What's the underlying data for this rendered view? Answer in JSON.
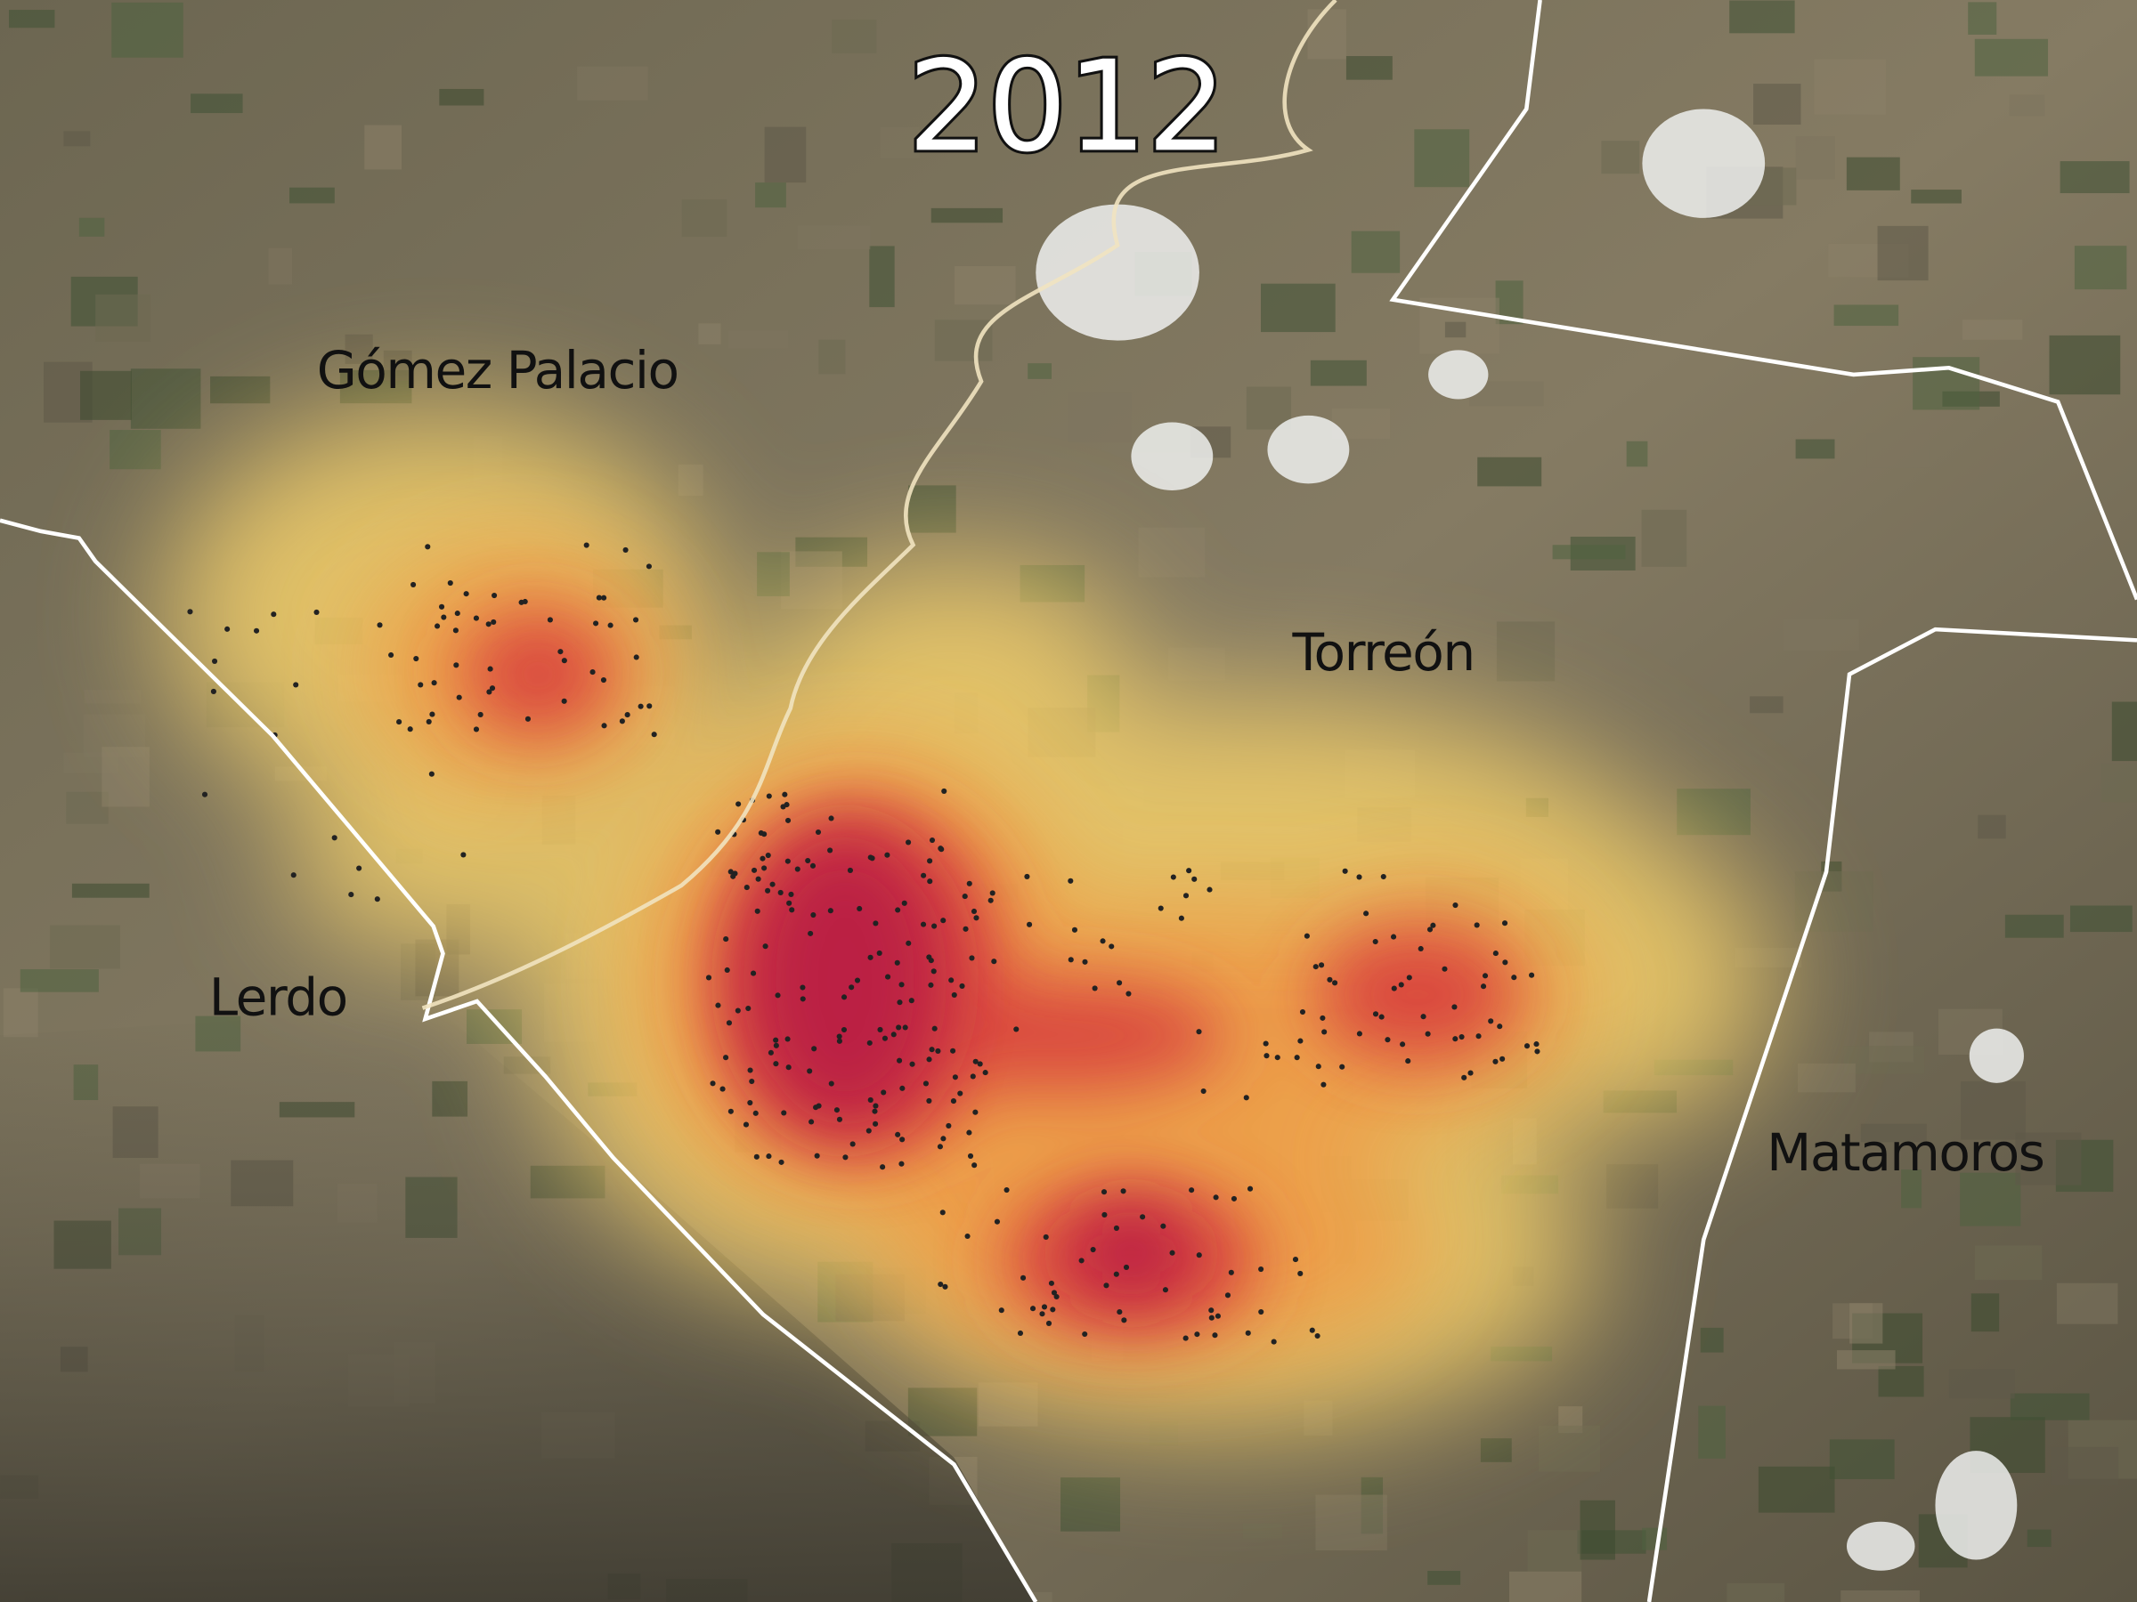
{
  "title": "2012",
  "places": [
    "Gómez Palacio",
    "Torreón",
    "Lerdo",
    "Matamoros"
  ]
}
